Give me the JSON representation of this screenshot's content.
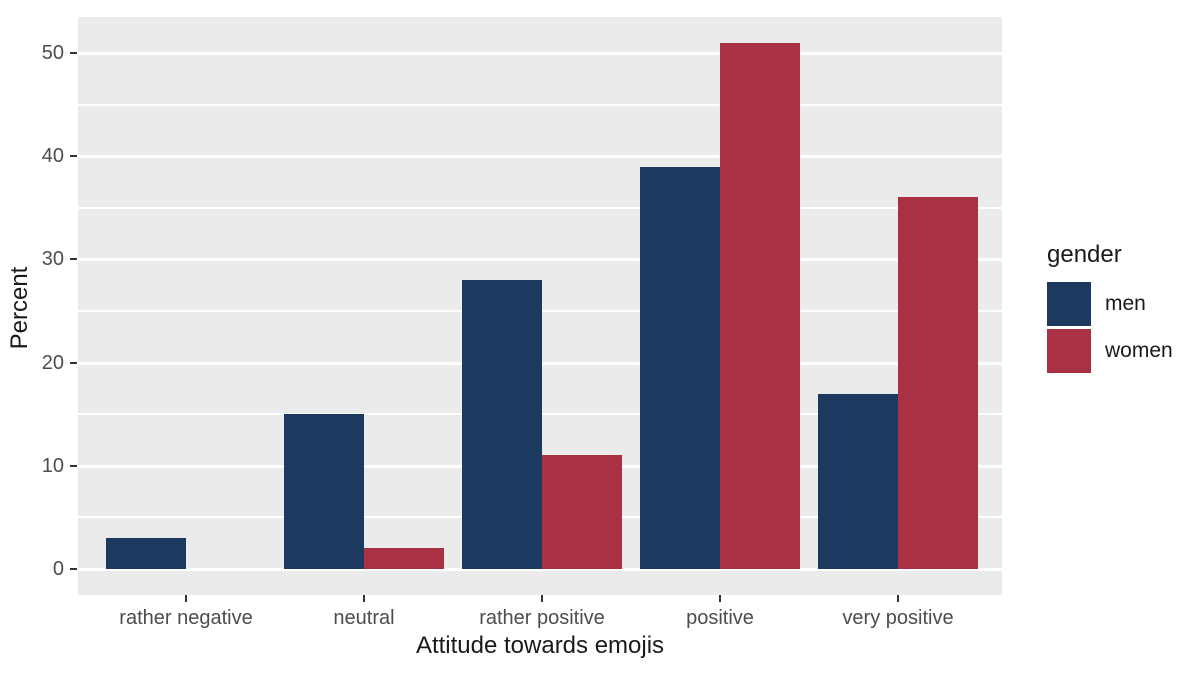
{
  "chart_data": {
    "type": "bar",
    "title": "",
    "xlabel": "Attitude towards emojis",
    "ylabel": "Percent",
    "categories": [
      "rather negative",
      "neutral",
      "rather positive",
      "positive",
      "very positive"
    ],
    "series": [
      {
        "name": "men",
        "color": "#1c3a60",
        "values": [
          3,
          15,
          28,
          39,
          17
        ]
      },
      {
        "name": "women",
        "color": "#aa3143",
        "values": [
          0,
          2,
          11,
          51,
          36
        ]
      }
    ],
    "y_ticks": [
      0,
      10,
      20,
      30,
      40,
      50
    ],
    "y_minor_ticks": [
      5,
      15,
      25,
      35,
      45
    ],
    "ylim": [
      -2.5,
      53.5
    ],
    "grid": "major+minor",
    "legend": {
      "title": "gender",
      "position": "right"
    },
    "colors": {
      "panel_bg": "#ebebeb",
      "grid": "#ffffff",
      "tick_label": "#4d4d4d",
      "axis_title": "#1a1a1a",
      "tick_mark": "#333333"
    }
  }
}
